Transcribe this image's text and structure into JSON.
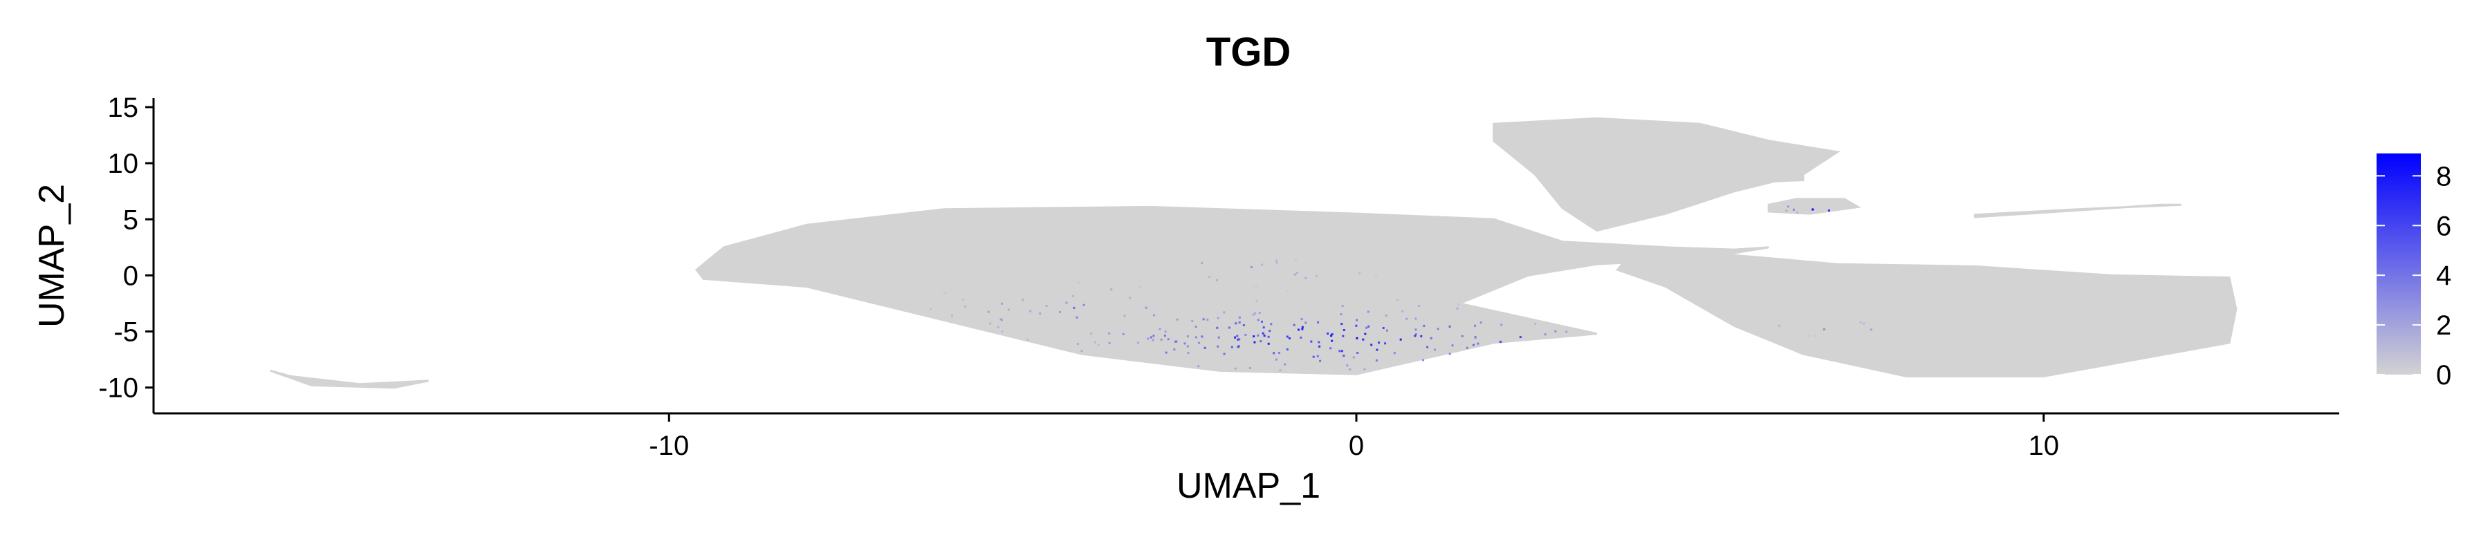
{
  "chart_data": {
    "type": "scatter",
    "title": "TGD",
    "xlabel": "UMAP_1",
    "ylabel": "UMAP_2",
    "xlim": [
      -17.5,
      14.3
    ],
    "ylim": [
      -12.3,
      15.8
    ],
    "x_ticks": [
      -10,
      0,
      10
    ],
    "x_tick_labels": [
      "-10",
      "0",
      "10"
    ],
    "y_ticks": [
      15,
      10,
      5,
      0,
      -5,
      -10
    ],
    "y_tick_labels": [
      "15",
      "10",
      "5",
      "0",
      "-5",
      "-10"
    ],
    "grid": false,
    "legend": {
      "placement": "right",
      "type": "colorbar",
      "ticks": [
        0,
        2,
        4,
        6,
        8
      ],
      "tick_labels": [
        "0",
        "2",
        "4",
        "6",
        "8"
      ],
      "range": [
        0,
        8.9
      ],
      "low_color": "#d3d3d3",
      "high_color": "#0000ff"
    },
    "point_color_low": "#d3d3d3",
    "point_color_high": "#0000ff",
    "clusters": [
      {
        "name": "main-left-mass",
        "polygon": [
          [
            -9.6,
            0.5
          ],
          [
            -9.2,
            2.5
          ],
          [
            -8,
            4.5
          ],
          [
            -6,
            5.9
          ],
          [
            -3,
            6.1
          ],
          [
            0,
            5.5
          ],
          [
            2,
            5
          ],
          [
            3,
            3
          ],
          [
            4.5,
            2.5
          ],
          [
            5.5,
            2.3
          ],
          [
            6,
            2.5
          ],
          [
            5,
            1.5
          ],
          [
            3.5,
            1
          ],
          [
            2.5,
            0
          ],
          [
            1.5,
            -2.5
          ],
          [
            3.5,
            -5.2
          ],
          [
            2,
            -6
          ],
          [
            0,
            -8.8
          ],
          [
            -2,
            -8.5
          ],
          [
            -4,
            -7
          ],
          [
            -6,
            -4
          ],
          [
            -8,
            -1
          ],
          [
            -9.5,
            -0.3
          ]
        ],
        "expression": "low"
      },
      {
        "name": "main-right-mass",
        "polygon": [
          [
            4,
            2
          ],
          [
            5.5,
            1.8
          ],
          [
            7,
            1
          ],
          [
            9,
            0.8
          ],
          [
            11,
            0
          ],
          [
            12.7,
            -0.2
          ],
          [
            12.8,
            -3
          ],
          [
            12.7,
            -6
          ],
          [
            10,
            -9
          ],
          [
            8,
            -9
          ],
          [
            6.5,
            -7
          ],
          [
            5.5,
            -4.5
          ],
          [
            4.5,
            -1
          ],
          [
            3.8,
            0.5
          ]
        ],
        "expression": "none"
      },
      {
        "name": "upper-right-arm",
        "polygon": [
          [
            2,
            13.5
          ],
          [
            3.5,
            14
          ],
          [
            5,
            13.5
          ],
          [
            6,
            12
          ],
          [
            7,
            11
          ],
          [
            6.5,
            9
          ],
          [
            5.5,
            7.5
          ],
          [
            4.5,
            5.5
          ],
          [
            3.5,
            4
          ],
          [
            3,
            6
          ],
          [
            2.6,
            9
          ],
          [
            2,
            12
          ]
        ],
        "expression": "none"
      },
      {
        "name": "thin-band",
        "polygon": [
          [
            3.2,
            7.8
          ],
          [
            5,
            8.8
          ],
          [
            6.5,
            9
          ],
          [
            6.5,
            8.5
          ],
          [
            4.5,
            8
          ],
          [
            3.3,
            7.4
          ]
        ],
        "expression": "none"
      },
      {
        "name": "small-purple-island",
        "polygon": [
          [
            6,
            6.3
          ],
          [
            6.4,
            6.8
          ],
          [
            7.1,
            6.8
          ],
          [
            7.3,
            6.1
          ],
          [
            6.6,
            5.5
          ],
          [
            6,
            5.7
          ]
        ],
        "expression": "high"
      },
      {
        "name": "right-sliver",
        "polygon": [
          [
            9,
            5.4
          ],
          [
            10.5,
            5.9
          ],
          [
            12,
            6.3
          ],
          [
            11.7,
            6.3
          ],
          [
            10.5,
            5.8
          ],
          [
            9,
            5.2
          ]
        ],
        "expression": "none"
      },
      {
        "name": "far-left-arc",
        "polygon": [
          [
            -15.8,
            -8.5
          ],
          [
            -15.2,
            -9.8
          ],
          [
            -14,
            -10
          ],
          [
            -13.5,
            -9.4
          ],
          [
            -14.5,
            -9.7
          ],
          [
            -15.5,
            -9
          ]
        ],
        "expression": "none"
      }
    ],
    "hotspots": [
      {
        "center": [
          -0.5,
          -5.5
        ],
        "spread": [
          3,
          2.5
        ],
        "intensity": 0.7
      },
      {
        "center": [
          2.3,
          -5.5
        ],
        "spread": [
          1.5,
          0.8
        ],
        "intensity": 0.55
      },
      {
        "center": [
          -4,
          -3
        ],
        "spread": [
          2,
          2
        ],
        "intensity": 0.35
      },
      {
        "center": [
          -1.5,
          0.5
        ],
        "spread": [
          1.5,
          1
        ],
        "intensity": 0.3
      },
      {
        "center": [
          6.7,
          6.1
        ],
        "spread": [
          0.5,
          0.4
        ],
        "intensity": 0.9
      },
      {
        "center": [
          7,
          -4.5
        ],
        "spread": [
          1,
          0.7
        ],
        "intensity": 0.3
      }
    ]
  }
}
